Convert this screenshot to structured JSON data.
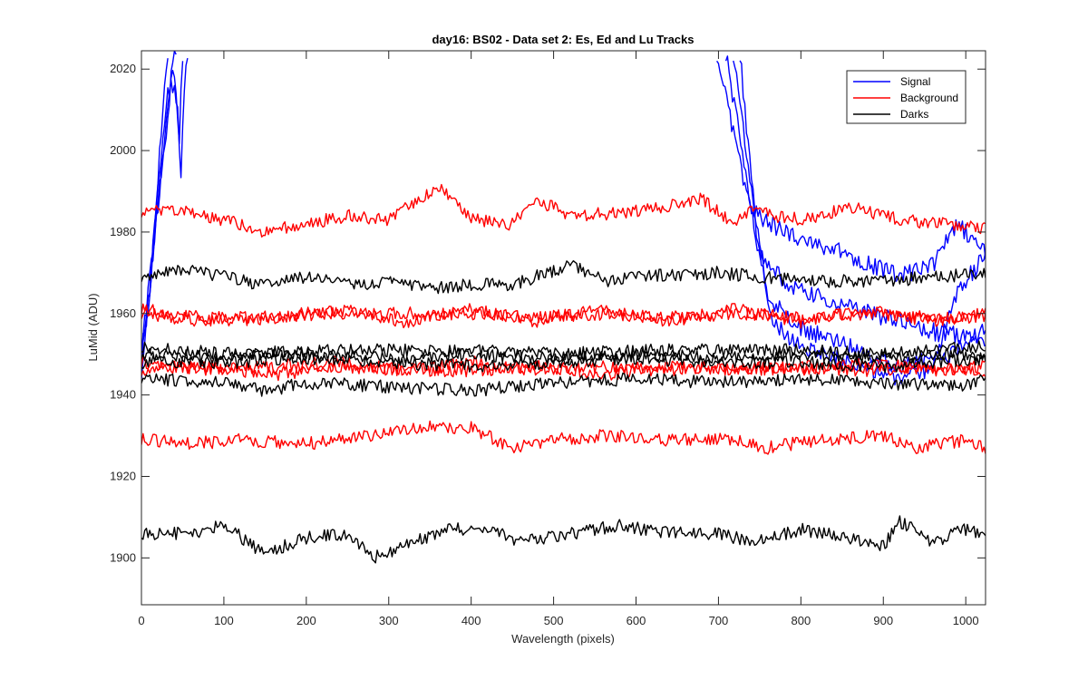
{
  "chart_data": {
    "type": "line",
    "title": "day16: BS02 - Data set 2: Es, Ed and Lu Tracks",
    "xlabel": "Wavelength (pixels)",
    "ylabel": "LuMid (ADU)",
    "xlim": [
      0,
      1024
    ],
    "ylim": [
      1888.5,
      2024.5
    ],
    "xticks": [
      0,
      100,
      200,
      300,
      400,
      500,
      600,
      700,
      800,
      900,
      1000
    ],
    "yticks": [
      1900,
      1920,
      1940,
      1960,
      1980,
      2000,
      2020
    ],
    "grid": false,
    "legend_position": "top-right",
    "legend": [
      {
        "label": "Signal",
        "color": "#0000ff"
      },
      {
        "label": "Background",
        "color": "#ff0000"
      },
      {
        "label": "Darks",
        "color": "#000000"
      }
    ],
    "series": [
      {
        "group": "Signal",
        "color": "#0000ff",
        "points": [
          [
            0,
            1946
          ],
          [
            8,
            1960
          ],
          [
            16,
            1982
          ],
          [
            24,
            2004
          ],
          [
            32,
            2024
          ]
        ]
      },
      {
        "group": "Signal",
        "color": "#0000ff",
        "points": [
          [
            0,
            1948
          ],
          [
            10,
            1966
          ],
          [
            20,
            1990
          ],
          [
            30,
            2012
          ],
          [
            40,
            2020
          ],
          [
            46,
            2003
          ],
          [
            50,
            2024
          ]
        ]
      },
      {
        "group": "Signal",
        "color": "#0000ff",
        "points": [
          [
            0,
            1952
          ],
          [
            12,
            1970
          ],
          [
            24,
            1995
          ],
          [
            36,
            2018
          ],
          [
            44,
            2010
          ],
          [
            48,
            1993
          ],
          [
            52,
            2016
          ],
          [
            56,
            2024
          ]
        ]
      },
      {
        "group": "Signal",
        "color": "#0000ff",
        "points": [
          [
            0,
            1950
          ],
          [
            14,
            1975
          ],
          [
            28,
            2000
          ],
          [
            38,
            2022
          ],
          [
            42,
            2024
          ]
        ]
      },
      {
        "group": "Signal",
        "color": "#0000ff",
        "points": [
          [
            698,
            2024
          ],
          [
            720,
            2002
          ],
          [
            740,
            1985
          ],
          [
            780,
            1980
          ],
          [
            850,
            1975
          ],
          [
            920,
            1969
          ],
          [
            960,
            1972
          ],
          [
            990,
            1982
          ],
          [
            1024,
            1975
          ]
        ]
      },
      {
        "group": "Signal",
        "color": "#0000ff",
        "points": [
          [
            709,
            2024
          ],
          [
            730,
            1998
          ],
          [
            750,
            1974
          ],
          [
            790,
            1966
          ],
          [
            850,
            1962
          ],
          [
            920,
            1958
          ],
          [
            970,
            1955
          ],
          [
            1024,
            1954
          ]
        ]
      },
      {
        "group": "Signal",
        "color": "#0000ff",
        "points": [
          [
            718,
            2024
          ],
          [
            740,
            1990
          ],
          [
            760,
            1964
          ],
          [
            800,
            1956
          ],
          [
            850,
            1953
          ],
          [
            920,
            1947
          ],
          [
            980,
            1950
          ],
          [
            1024,
            1956
          ]
        ]
      },
      {
        "group": "Signal",
        "color": "#0000ff",
        "points": [
          [
            726,
            2024
          ],
          [
            745,
            1982
          ],
          [
            765,
            1958
          ],
          [
            800,
            1952
          ],
          [
            860,
            1948
          ],
          [
            920,
            1944
          ],
          [
            960,
            1946
          ],
          [
            990,
            1966
          ],
          [
            1024,
            1974
          ]
        ]
      },
      {
        "group": "Background",
        "color": "#ff0000",
        "points": [
          [
            0,
            1985
          ],
          [
            50,
            1985
          ],
          [
            100,
            1983
          ],
          [
            150,
            1980
          ],
          [
            200,
            1982
          ],
          [
            250,
            1984
          ],
          [
            300,
            1983
          ],
          [
            360,
            1991
          ],
          [
            400,
            1983
          ],
          [
            450,
            1982
          ],
          [
            480,
            1988
          ],
          [
            520,
            1984
          ],
          [
            600,
            1985
          ],
          [
            680,
            1988
          ],
          [
            720,
            1982
          ],
          [
            740,
            1985
          ],
          [
            800,
            1983
          ],
          [
            860,
            1986
          ],
          [
            920,
            1983
          ],
          [
            1024,
            1981
          ]
        ]
      },
      {
        "group": "Background",
        "color": "#ff0000",
        "points": [
          [
            0,
            1961
          ],
          [
            80,
            1959
          ],
          [
            160,
            1959
          ],
          [
            240,
            1960
          ],
          [
            320,
            1960
          ],
          [
            400,
            1960
          ],
          [
            480,
            1959
          ],
          [
            560,
            1960
          ],
          [
            640,
            1959
          ],
          [
            720,
            1960
          ],
          [
            800,
            1959
          ],
          [
            880,
            1960
          ],
          [
            960,
            1959
          ],
          [
            1024,
            1959
          ]
        ]
      },
      {
        "group": "Background",
        "color": "#ff0000",
        "points": [
          [
            0,
            1960
          ],
          [
            80,
            1958
          ],
          [
            160,
            1959
          ],
          [
            240,
            1961
          ],
          [
            320,
            1958
          ],
          [
            400,
            1961
          ],
          [
            480,
            1958
          ],
          [
            560,
            1961
          ],
          [
            640,
            1958
          ],
          [
            720,
            1961
          ],
          [
            800,
            1958
          ],
          [
            880,
            1961
          ],
          [
            960,
            1958
          ],
          [
            1024,
            1960
          ]
        ]
      },
      {
        "group": "Background",
        "color": "#ff0000",
        "points": [
          [
            0,
            1948
          ],
          [
            80,
            1946
          ],
          [
            160,
            1947
          ],
          [
            240,
            1948
          ],
          [
            320,
            1946
          ],
          [
            400,
            1948
          ],
          [
            480,
            1946
          ],
          [
            560,
            1947
          ],
          [
            640,
            1946
          ],
          [
            720,
            1947
          ],
          [
            800,
            1946
          ],
          [
            880,
            1948
          ],
          [
            960,
            1946
          ],
          [
            1024,
            1947
          ]
        ]
      },
      {
        "group": "Background",
        "color": "#ff0000",
        "points": [
          [
            0,
            1946
          ],
          [
            80,
            1947
          ],
          [
            160,
            1945
          ],
          [
            240,
            1947
          ],
          [
            320,
            1946
          ],
          [
            400,
            1946
          ],
          [
            480,
            1947
          ],
          [
            560,
            1945
          ],
          [
            640,
            1947
          ],
          [
            720,
            1946
          ],
          [
            800,
            1947
          ],
          [
            880,
            1946
          ],
          [
            960,
            1947
          ],
          [
            1024,
            1946
          ]
        ]
      },
      {
        "group": "Background",
        "color": "#ff0000",
        "points": [
          [
            0,
            1929
          ],
          [
            60,
            1928
          ],
          [
            120,
            1929
          ],
          [
            200,
            1928
          ],
          [
            280,
            1930
          ],
          [
            330,
            1932
          ],
          [
            400,
            1932
          ],
          [
            450,
            1927
          ],
          [
            500,
            1929
          ],
          [
            560,
            1930
          ],
          [
            640,
            1929
          ],
          [
            720,
            1929
          ],
          [
            760,
            1927
          ],
          [
            820,
            1929
          ],
          [
            900,
            1930
          ],
          [
            940,
            1927
          ],
          [
            1000,
            1929
          ],
          [
            1024,
            1927
          ]
        ]
      },
      {
        "group": "Darks",
        "color": "#000000",
        "points": [
          [
            0,
            1969
          ],
          [
            50,
            1971
          ],
          [
            100,
            1969
          ],
          [
            150,
            1967
          ],
          [
            200,
            1969
          ],
          [
            250,
            1967
          ],
          [
            300,
            1968
          ],
          [
            350,
            1966
          ],
          [
            400,
            1967
          ],
          [
            450,
            1967
          ],
          [
            520,
            1972
          ],
          [
            560,
            1968
          ],
          [
            600,
            1969
          ],
          [
            700,
            1970
          ],
          [
            800,
            1968
          ],
          [
            900,
            1968
          ],
          [
            1024,
            1970
          ]
        ]
      },
      {
        "group": "Darks",
        "color": "#000000",
        "points": [
          [
            0,
            1952
          ],
          [
            100,
            1950
          ],
          [
            200,
            1951
          ],
          [
            300,
            1951
          ],
          [
            400,
            1951
          ],
          [
            500,
            1950
          ],
          [
            600,
            1951
          ],
          [
            700,
            1951
          ],
          [
            800,
            1951
          ],
          [
            900,
            1950
          ],
          [
            1024,
            1952
          ]
        ]
      },
      {
        "group": "Darks",
        "color": "#000000",
        "points": [
          [
            0,
            1950
          ],
          [
            100,
            1949
          ],
          [
            200,
            1950
          ],
          [
            300,
            1949
          ],
          [
            400,
            1950
          ],
          [
            500,
            1949
          ],
          [
            600,
            1950
          ],
          [
            700,
            1949
          ],
          [
            800,
            1950
          ],
          [
            900,
            1949
          ],
          [
            1024,
            1950
          ]
        ]
      },
      {
        "group": "Darks",
        "color": "#000000",
        "points": [
          [
            0,
            1948
          ],
          [
            100,
            1948
          ],
          [
            200,
            1949
          ],
          [
            300,
            1948
          ],
          [
            400,
            1947
          ],
          [
            500,
            1948
          ],
          [
            600,
            1949
          ],
          [
            700,
            1948
          ],
          [
            800,
            1948
          ],
          [
            900,
            1947
          ],
          [
            1024,
            1949
          ]
        ]
      },
      {
        "group": "Darks",
        "color": "#000000",
        "points": [
          [
            0,
            1944
          ],
          [
            100,
            1943
          ],
          [
            150,
            1941
          ],
          [
            200,
            1943
          ],
          [
            300,
            1942
          ],
          [
            400,
            1941
          ],
          [
            500,
            1943
          ],
          [
            600,
            1944
          ],
          [
            700,
            1943
          ],
          [
            800,
            1944
          ],
          [
            900,
            1943
          ],
          [
            1000,
            1942
          ],
          [
            1024,
            1945
          ]
        ]
      },
      {
        "group": "Darks",
        "color": "#000000",
        "points": [
          [
            0,
            1906
          ],
          [
            60,
            1906
          ],
          [
            100,
            1908
          ],
          [
            150,
            1901
          ],
          [
            200,
            1905
          ],
          [
            250,
            1906
          ],
          [
            280,
            1900
          ],
          [
            320,
            1903
          ],
          [
            370,
            1907
          ],
          [
            420,
            1907
          ],
          [
            460,
            1904
          ],
          [
            520,
            1906
          ],
          [
            580,
            1908
          ],
          [
            640,
            1906
          ],
          [
            700,
            1906
          ],
          [
            740,
            1904
          ],
          [
            800,
            1907
          ],
          [
            860,
            1905
          ],
          [
            900,
            1903
          ],
          [
            920,
            1909
          ],
          [
            960,
            1904
          ],
          [
            1000,
            1907
          ],
          [
            1024,
            1906
          ]
        ]
      }
    ]
  }
}
